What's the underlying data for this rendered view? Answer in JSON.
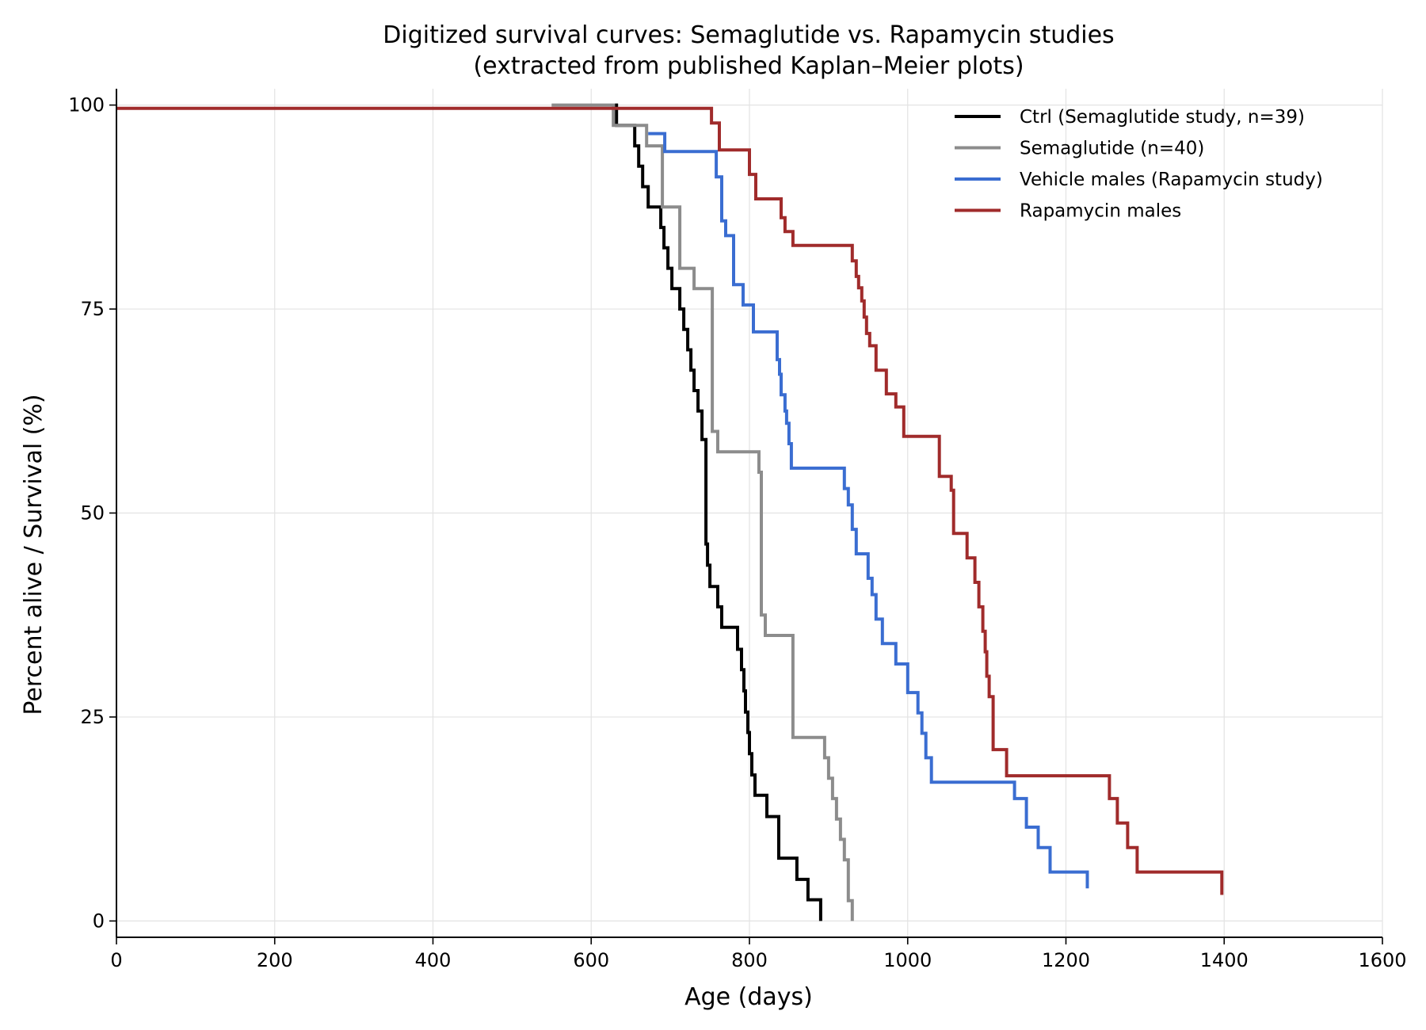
{
  "chart_data": {
    "type": "line",
    "title": [
      "Digitized survival curves: Semaglutide vs. Rapamycin studies",
      "(extracted from published Kaplan–Meier plots)"
    ],
    "xlabel": "Age (days)",
    "ylabel": "Percent alive / Survival (%)",
    "xlim": [
      0,
      1600
    ],
    "ylim": [
      -2,
      102
    ],
    "xticks": [
      0,
      200,
      400,
      600,
      800,
      1000,
      1200,
      1400,
      1600
    ],
    "yticks": [
      0,
      25,
      50,
      75,
      100
    ],
    "grid": true,
    "legend_position": "top-right",
    "step": "post",
    "series": [
      {
        "name": "Ctrl (Semaglutide study, n=39)",
        "color": "#000000",
        "x": [
          630,
          632,
          652,
          655,
          660,
          665,
          672,
          684,
          688,
          692,
          697,
          702,
          712,
          717,
          722,
          726,
          730,
          735,
          740,
          745,
          747,
          750,
          754,
          760,
          765,
          785,
          790,
          793,
          795,
          798,
          800,
          803,
          807,
          810,
          822,
          837,
          853,
          860,
          874,
          888,
          890
        ],
        "y": [
          100,
          97.5,
          97.5,
          95,
          92.5,
          90,
          87.5,
          87.5,
          85,
          82.5,
          80,
          77.5,
          75,
          72.5,
          70,
          67.5,
          65,
          62.5,
          59.0,
          46.2,
          43.6,
          41.0,
          41.0,
          38.5,
          36.0,
          33.3,
          30.8,
          28.2,
          25.6,
          23.1,
          20.5,
          17.9,
          15.4,
          15.4,
          12.8,
          7.7,
          7.7,
          5.1,
          2.6,
          2.6,
          0
        ]
      },
      {
        "name": "Semaglutide (n=40)",
        "color": "#8c8c8c",
        "x": [
          550,
          628,
          640,
          670,
          688,
          690,
          712,
          730,
          750,
          753,
          760,
          780,
          810,
          812,
          815,
          820,
          850,
          855,
          890,
          895,
          900,
          905,
          910,
          915,
          920,
          925,
          930
        ],
        "y": [
          100,
          97.5,
          97.5,
          95,
          95,
          87.5,
          80,
          77.5,
          77.5,
          60,
          57.5,
          57.5,
          57.5,
          55,
          37.5,
          35,
          35,
          22.5,
          22.5,
          20,
          17.5,
          15,
          12.5,
          10,
          7.5,
          2.5,
          0
        ]
      },
      {
        "name": "Vehicle males (Rapamycin study)",
        "color": "#3a6dd1",
        "x": [
          672,
          688,
          693,
          758,
          765,
          770,
          780,
          792,
          805,
          818,
          835,
          838,
          840,
          845,
          847,
          850,
          853,
          858,
          920,
          925,
          930,
          935,
          950,
          955,
          960,
          968,
          985,
          1000,
          1013,
          1018,
          1023,
          1030,
          1035,
          1135,
          1150,
          1165,
          1180,
          1205,
          1225,
          1227
        ],
        "y": [
          96.5,
          96.5,
          94.3,
          91.2,
          85.8,
          84.0,
          78.0,
          75.5,
          72.2,
          72.2,
          68.8,
          67.0,
          64.5,
          62.5,
          61.0,
          58.5,
          55.5,
          55.5,
          53.0,
          51.0,
          48.0,
          45.0,
          42.0,
          40.0,
          37.0,
          34.0,
          31.5,
          28.0,
          25.5,
          23.0,
          20.0,
          17.0,
          17.0,
          15.0,
          11.5,
          9.0,
          6.0,
          6.0,
          6.0,
          4.0
        ]
      },
      {
        "name": "Rapamycin males",
        "color": "#a02b2b",
        "x": [
          0,
          750,
          752,
          762,
          800,
          808,
          818,
          840,
          845,
          855,
          868,
          930,
          935,
          938,
          942,
          945,
          948,
          952,
          960,
          963,
          973,
          985,
          995,
          1005,
          1040,
          1055,
          1058,
          1060,
          1075,
          1085,
          1090,
          1095,
          1098,
          1100,
          1103,
          1108,
          1113,
          1125,
          1255,
          1265,
          1278,
          1290,
          1310,
          1395,
          1397
        ],
        "y": [
          99.6,
          99.6,
          97.8,
          94.5,
          91.5,
          88.5,
          88.5,
          86.2,
          84.5,
          82.8,
          82.8,
          80.9,
          79.0,
          77.6,
          76.0,
          74.0,
          72.0,
          70.5,
          67.5,
          67.5,
          64.6,
          63.0,
          59.4,
          59.4,
          54.5,
          52.8,
          47.5,
          47.5,
          44.5,
          41.5,
          38.5,
          35.5,
          33.0,
          30.0,
          27.5,
          21.0,
          21.0,
          17.8,
          15.0,
          12.0,
          9.0,
          6.0,
          6.0,
          6.0,
          3.2
        ]
      }
    ]
  }
}
